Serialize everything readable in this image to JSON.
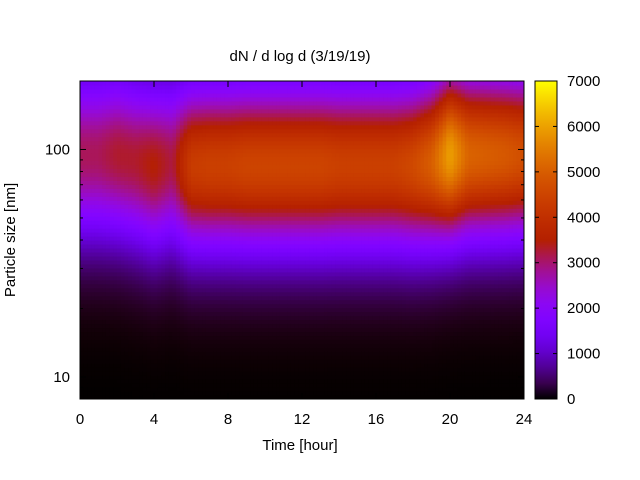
{
  "chart_data": {
    "type": "heatmap",
    "title": "dN / d log d (3/19/19)",
    "xlabel": "Time [hour]",
    "ylabel": "Particle size [nm]",
    "xlim": [
      0,
      24
    ],
    "ylim": [
      8,
      200
    ],
    "y_scale": "log",
    "x_ticks": [
      0,
      4,
      8,
      12,
      16,
      20,
      24
    ],
    "x_tick_labels": [
      "0",
      "4",
      "8",
      "12",
      "16",
      "20",
      "24"
    ],
    "y_ticks": [
      10,
      100
    ],
    "y_tick_labels": [
      "10",
      "100"
    ],
    "colorbar": {
      "min": 0,
      "max": 7000,
      "ticks": [
        0,
        1000,
        2000,
        3000,
        4000,
        5000,
        6000,
        7000
      ],
      "tick_labels": [
        "0",
        "1000",
        "2000",
        "3000",
        "4000",
        "5000",
        "6000",
        "7000"
      ],
      "palette": "gnuplot-traditional-pm3d"
    },
    "hours": [
      0,
      1,
      2,
      3,
      4,
      5,
      6,
      7,
      8,
      9,
      10,
      11,
      12,
      13,
      14,
      15,
      16,
      17,
      18,
      19,
      20,
      21,
      22,
      23,
      24
    ],
    "peak_size_nm": [
      95,
      95,
      95,
      90,
      85,
      88,
      85,
      85,
      85,
      85,
      85,
      85,
      85,
      85,
      85,
      85,
      85,
      85,
      85,
      88,
      95,
      95,
      95,
      95,
      95
    ],
    "peak_concentration": [
      3100,
      3100,
      3300,
      3300,
      3500,
      3200,
      4300,
      4400,
      4400,
      4500,
      4500,
      4500,
      4500,
      4500,
      4400,
      4400,
      4400,
      4400,
      4600,
      5000,
      6000,
      5100,
      5000,
      4900,
      4700
    ],
    "grid": false,
    "legend": "none"
  }
}
